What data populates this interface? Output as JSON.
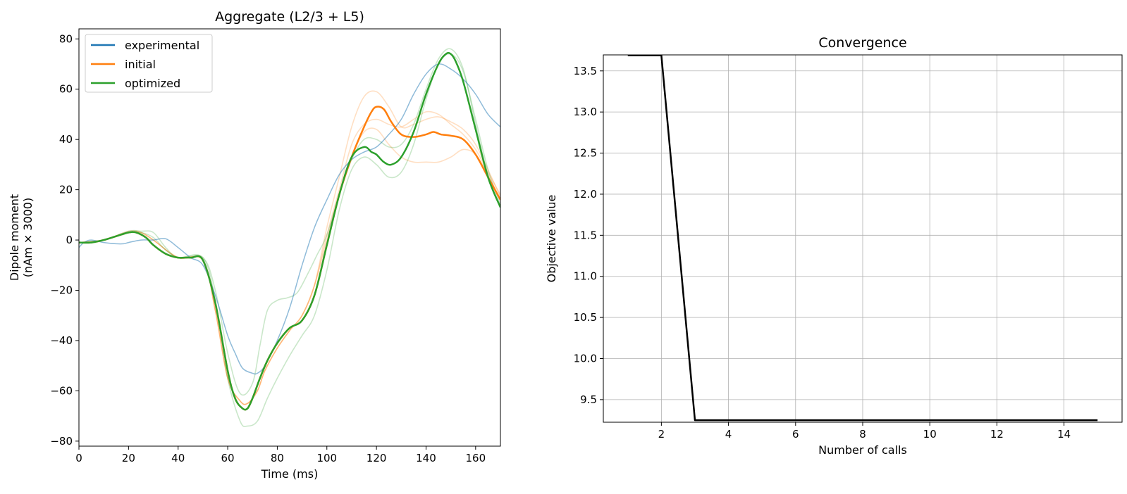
{
  "chart_data": [
    {
      "type": "line",
      "title": "Aggregate (L2/3 + L5)",
      "xlabel": "Time (ms)",
      "ylabel": [
        "Dipole moment",
        "(nAm × 3000)"
      ],
      "xlim": [
        0,
        170
      ],
      "ylim": [
        -82,
        84
      ],
      "xticks": [
        0,
        20,
        40,
        60,
        80,
        100,
        120,
        140,
        160
      ],
      "yticks": [
        -80,
        -60,
        -40,
        -20,
        0,
        20,
        40,
        60,
        80
      ],
      "ytick_labels": [
        "−80",
        "−60",
        "−40",
        "−20",
        "0",
        "20",
        "40",
        "60",
        "80"
      ],
      "grid": false,
      "legend_position": "upper-left",
      "legend": [
        "experimental",
        "initial",
        "optimized"
      ],
      "colors": {
        "experimental": "#1f77b4",
        "initial": "#ff7f0e",
        "optimized": "#2ca02c"
      },
      "series": [
        {
          "name": "experimental",
          "x": [
            0,
            2,
            5,
            10,
            15,
            18,
            20,
            25,
            30,
            35,
            40,
            45,
            50,
            55,
            60,
            63,
            66,
            70,
            72,
            75,
            80,
            85,
            90,
            95,
            100,
            105,
            110,
            115,
            120,
            125,
            130,
            135,
            140,
            145,
            150,
            155,
            160,
            165,
            170
          ],
          "y": [
            -3,
            -1,
            0,
            -1,
            -1.5,
            -1.5,
            -1,
            0,
            0,
            0.5,
            -3,
            -7,
            -10,
            -22,
            -38,
            -45,
            -51,
            -53,
            -53,
            -50,
            -40,
            -27,
            -10,
            5,
            16,
            26,
            32,
            35,
            37,
            42,
            48,
            58,
            66,
            70,
            68,
            64,
            58,
            50,
            45
          ],
          "opacity": 0.5,
          "width": 1.5
        },
        {
          "name": "initial",
          "x": [
            0,
            5,
            10,
            15,
            20,
            23,
            27,
            30,
            35,
            40,
            45,
            50,
            55,
            60,
            63,
            66,
            68,
            70,
            73,
            76,
            80,
            85,
            90,
            95,
            100,
            105,
            110,
            115,
            118,
            120,
            123,
            126,
            130,
            135,
            140,
            143,
            146,
            150,
            155,
            160,
            165,
            170
          ],
          "y": [
            -1,
            -1,
            0,
            1.5,
            3,
            3,
            1,
            -2,
            -5.5,
            -7,
            -7,
            -8,
            -25,
            -52,
            -63,
            -67,
            -67,
            -63,
            -55,
            -48,
            -41,
            -35,
            -32,
            -22,
            -2,
            18,
            33,
            45,
            51,
            53,
            52,
            47,
            42,
            41,
            42,
            43,
            42,
            41.5,
            40,
            34,
            25,
            16
          ],
          "opacity": 1,
          "width": 2.5
        },
        {
          "name": "optimized",
          "x": [
            0,
            5,
            10,
            15,
            20,
            23,
            27,
            30,
            35,
            40,
            45,
            50,
            55,
            60,
            63,
            66,
            68,
            70,
            73,
            76,
            80,
            85,
            90,
            95,
            100,
            105,
            110,
            115,
            118,
            120,
            123,
            126,
            130,
            135,
            140,
            145,
            148,
            150,
            152,
            155,
            160,
            165,
            170
          ],
          "y": [
            -1,
            -1,
            0,
            1.5,
            3,
            3,
            1,
            -2,
            -5.5,
            -7,
            -7,
            -8,
            -25,
            -52,
            -63,
            -67,
            -67,
            -63,
            -55,
            -48,
            -41,
            -35,
            -32,
            -22,
            -2,
            18,
            33,
            37,
            35,
            34,
            31,
            30,
            33,
            43,
            58,
            70,
            74,
            74,
            71,
            63,
            44,
            25,
            13
          ],
          "opacity": 1,
          "width": 2.5
        }
      ],
      "trials": [
        {
          "color": "#ff7f0e",
          "opacity": 0.25,
          "x": [
            0,
            10,
            20,
            25,
            30,
            40,
            50,
            55,
            60,
            65,
            68,
            72,
            75,
            80,
            85,
            90,
            95,
            100,
            105,
            110,
            115,
            120,
            125,
            130,
            135,
            140,
            145,
            150,
            155,
            160,
            165,
            170
          ],
          "y": [
            -1,
            0,
            3.5,
            3,
            0,
            -7,
            -8,
            -28,
            -55,
            -64,
            -65,
            -60,
            -52,
            -43,
            -36,
            -30,
            -18,
            5,
            25,
            45,
            57,
            59,
            53,
            45,
            46,
            48,
            49,
            47,
            44,
            38,
            28,
            17
          ]
        },
        {
          "color": "#ff7f0e",
          "opacity": 0.25,
          "x": [
            0,
            10,
            20,
            25,
            30,
            40,
            50,
            55,
            60,
            65,
            68,
            72,
            75,
            80,
            85,
            90,
            95,
            100,
            105,
            110,
            115,
            120,
            125,
            130,
            135,
            140,
            145,
            150,
            155,
            160,
            165,
            170
          ],
          "y": [
            -1,
            0,
            3,
            3,
            0,
            -7,
            -8,
            -28,
            -55,
            -64,
            -65,
            -60,
            -52,
            -43,
            -36,
            -30,
            -18,
            2,
            20,
            38,
            46,
            48,
            46,
            45,
            48,
            51,
            50,
            46,
            42,
            36,
            27,
            18
          ]
        },
        {
          "color": "#ff7f0e",
          "opacity": 0.25,
          "x": [
            0,
            10,
            20,
            25,
            30,
            40,
            50,
            55,
            60,
            65,
            68,
            72,
            75,
            80,
            85,
            90,
            95,
            100,
            105,
            110,
            115,
            120,
            125,
            130,
            135,
            140,
            145,
            150,
            155,
            160,
            165,
            170
          ],
          "y": [
            -1,
            0,
            3,
            3,
            0,
            -7,
            -8,
            -28,
            -55,
            -64,
            -65,
            -60,
            -52,
            -43,
            -36,
            -30,
            -18,
            0,
            18,
            33,
            43,
            44,
            38,
            33,
            31,
            31,
            31,
            33,
            36,
            34,
            26,
            16
          ]
        },
        {
          "color": "#2ca02c",
          "opacity": 0.25,
          "x": [
            0,
            10,
            20,
            25,
            30,
            35,
            40,
            50,
            55,
            60,
            65,
            70,
            73,
            76,
            80,
            84,
            88,
            92,
            96,
            100,
            105,
            110,
            115,
            120,
            125,
            130,
            135,
            140,
            145,
            150,
            155,
            160,
            165,
            170
          ],
          "y": [
            -1,
            0,
            3.5,
            3.5,
            3,
            -3,
            -7,
            -7,
            -20,
            -45,
            -61,
            -57,
            -42,
            -28,
            -24,
            -23,
            -21,
            -14,
            -6,
            2,
            18,
            32,
            40,
            40,
            37,
            38,
            46,
            60,
            72,
            76,
            68,
            46,
            26,
            13
          ]
        },
        {
          "color": "#2ca02c",
          "opacity": 0.25,
          "x": [
            0,
            10,
            20,
            25,
            30,
            35,
            40,
            50,
            55,
            60,
            65,
            68,
            72,
            76,
            80,
            85,
            90,
            95,
            100,
            105,
            110,
            115,
            120,
            125,
            130,
            135,
            140,
            145,
            150,
            155,
            160,
            165,
            170
          ],
          "y": [
            -1,
            0,
            3,
            3,
            1,
            -4,
            -7,
            -7,
            -24,
            -55,
            -72,
            -74,
            -72,
            -63,
            -55,
            -46,
            -38,
            -30,
            -12,
            12,
            28,
            33,
            30,
            25,
            27,
            38,
            56,
            70,
            74,
            67,
            48,
            28,
            14
          ]
        }
      ]
    },
    {
      "type": "line",
      "title": "Convergence",
      "xlabel": "Number of calls",
      "ylabel": "Objective value",
      "xlim": [
        0.27,
        15.73
      ],
      "ylim": [
        9.225,
        13.695
      ],
      "xticks": [
        2,
        4,
        6,
        8,
        10,
        12,
        14
      ],
      "yticks": [
        9.5,
        10.0,
        10.5,
        11.0,
        11.5,
        12.0,
        12.5,
        13.0,
        13.5
      ],
      "ytick_labels": [
        "9.5",
        "10.0",
        "10.5",
        "11.0",
        "11.5",
        "12.0",
        "12.5",
        "13.0",
        "13.5"
      ],
      "grid": true,
      "series": [
        {
          "color": "#000000",
          "x": [
            1,
            2,
            3,
            4,
            5,
            6,
            7,
            8,
            9,
            10,
            11,
            12,
            13,
            14,
            15
          ],
          "y": [
            13.69,
            13.69,
            9.25,
            9.25,
            9.25,
            9.25,
            9.25,
            9.25,
            9.25,
            9.25,
            9.25,
            9.25,
            9.25,
            9.25,
            9.25
          ]
        }
      ]
    }
  ]
}
